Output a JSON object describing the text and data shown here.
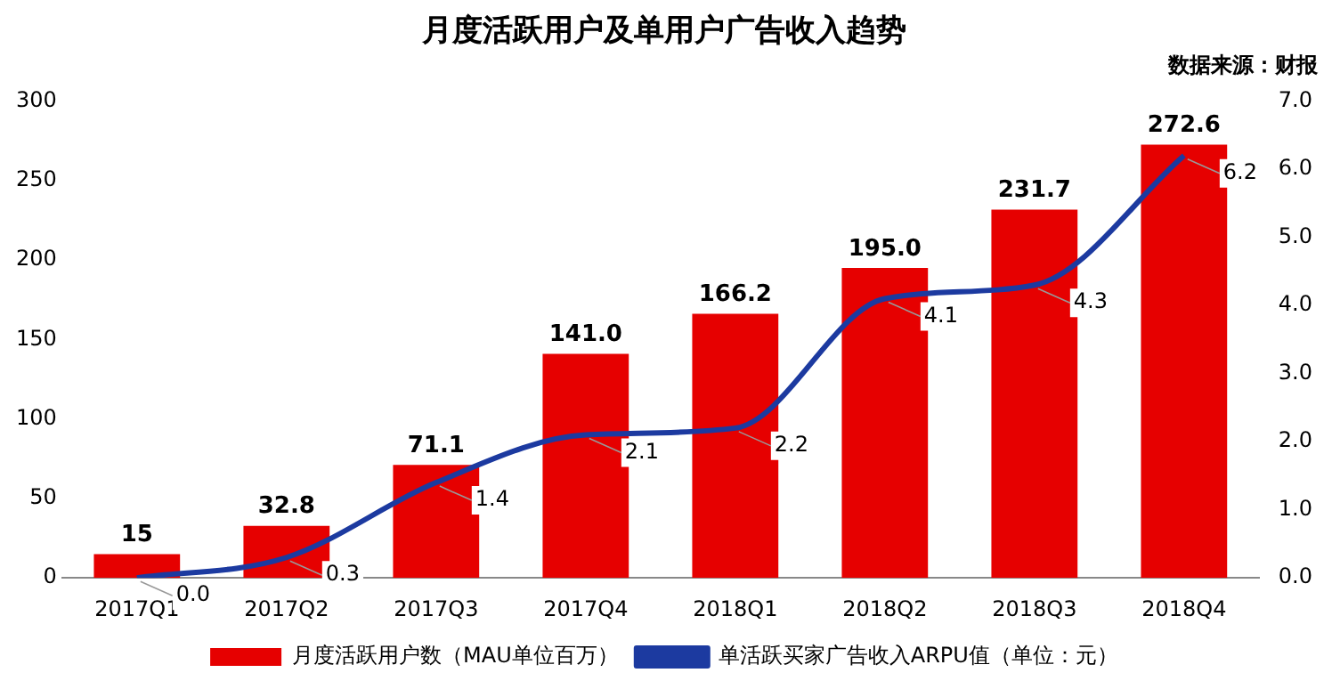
{
  "chart_data": {
    "type": "bar",
    "title": "月度活跃用户及单用户广告收入趋势",
    "subtitle": "数据来源：财报",
    "categories": [
      "2017Q1",
      "2017Q2",
      "2017Q3",
      "2017Q4",
      "2018Q1",
      "2018Q2",
      "2018Q3",
      "2018Q4"
    ],
    "series": [
      {
        "name": "月度活跃用户数（MAU单位百万）",
        "color": "#e60000",
        "values": [
          15,
          32.8,
          71.1,
          141.0,
          166.2,
          195.0,
          231.7,
          272.6
        ],
        "value_labels": [
          "15",
          "32.8",
          "71.1",
          "141.0",
          "166.2",
          "195.0",
          "231.7",
          "272.6"
        ]
      },
      {
        "name": "单活跃买家广告收入ARPU值（单位：元）",
        "type": "line",
        "axis": "y2",
        "color": "#1c3aa0",
        "values": [
          0.0,
          0.3,
          1.4,
          2.1,
          2.2,
          4.1,
          4.3,
          6.2
        ],
        "value_labels": [
          "0.0",
          "0.3",
          "1.4",
          "2.1",
          "2.2",
          "4.1",
          "4.3",
          "6.2"
        ]
      }
    ],
    "ylim": [
      0,
      300
    ],
    "yticks": [
      0,
      50,
      100,
      150,
      200,
      250,
      300
    ],
    "y2lim": [
      0,
      7
    ],
    "y2ticks": [
      {
        "value": 0,
        "label": "0.0"
      },
      {
        "value": 1,
        "label": "1.0"
      },
      {
        "value": 2,
        "label": "2.0"
      },
      {
        "value": 3,
        "label": "3.0"
      },
      {
        "value": 4,
        "label": "4.0"
      },
      {
        "value": 5,
        "label": "5.0"
      },
      {
        "value": 6,
        "label": "6.0"
      },
      {
        "value": 7,
        "label": "7.0"
      }
    ],
    "legend": "bottom",
    "grid": false,
    "marker": "none"
  }
}
